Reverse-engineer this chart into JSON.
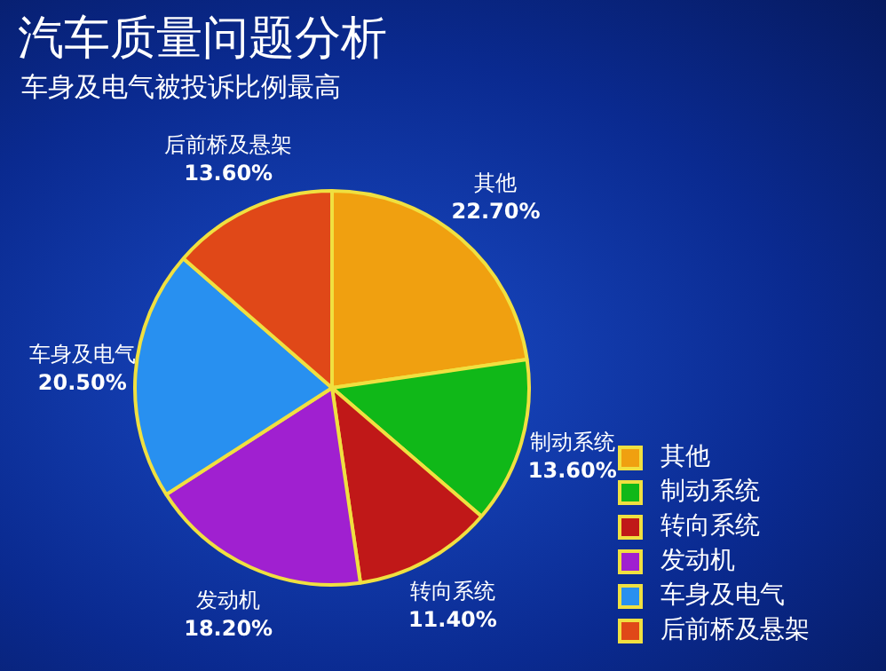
{
  "chart_data": {
    "type": "pie",
    "title": "汽车质量问题分析",
    "subtitle": "车身及电气被投诉比例最高",
    "categories": [
      "其他",
      "制动系统",
      "转向系统",
      "发动机",
      "车身及电气",
      "后前桥及悬架"
    ],
    "values": [
      22.7,
      13.6,
      11.4,
      18.2,
      20.5,
      13.6
    ],
    "value_labels": [
      "22.70%",
      "13.60%",
      "11.40%",
      "18.20%",
      "20.50%",
      "13.60%"
    ],
    "colors": [
      "#f0a010",
      "#10b818",
      "#c01818",
      "#a020d0",
      "#2890f0",
      "#e04818"
    ],
    "legend": "bottom right"
  }
}
